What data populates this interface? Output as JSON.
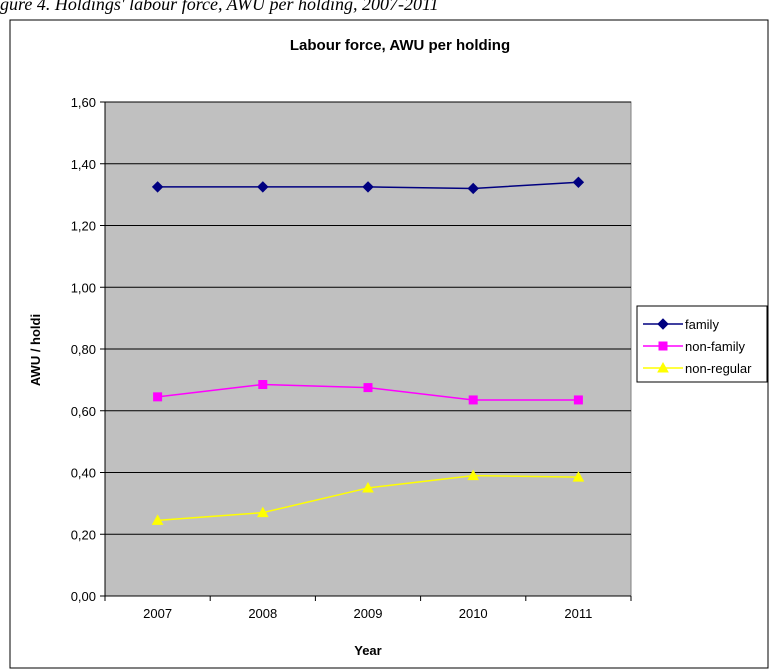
{
  "caption": "gure 4. Holdings' labour force, AWU per holding, 2007-2011",
  "chart_data": {
    "type": "line",
    "title": "Labour force, AWU per holding",
    "xlabel": "Year",
    "ylabel": "AWU / holdi",
    "categories": [
      "2007",
      "2008",
      "2009",
      "2010",
      "2011"
    ],
    "ylim": [
      0,
      1.6
    ],
    "yticks": [
      "0,00",
      "0,20",
      "0,40",
      "0,60",
      "0,80",
      "1,00",
      "1,20",
      "1,40",
      "1,60"
    ],
    "grid": true,
    "legend_position": "right",
    "plot_background": "#c0c0c0",
    "series": [
      {
        "name": "family",
        "values": [
          1.325,
          1.325,
          1.325,
          1.32,
          1.34
        ],
        "color": "#000080",
        "marker": "diamond"
      },
      {
        "name": "non-family",
        "values": [
          0.645,
          0.685,
          0.675,
          0.635,
          0.635
        ],
        "color": "#ff00ff",
        "marker": "square"
      },
      {
        "name": "non-regular",
        "values": [
          0.245,
          0.27,
          0.35,
          0.39,
          0.385
        ],
        "color": "#ffff00",
        "marker": "triangle"
      }
    ]
  }
}
